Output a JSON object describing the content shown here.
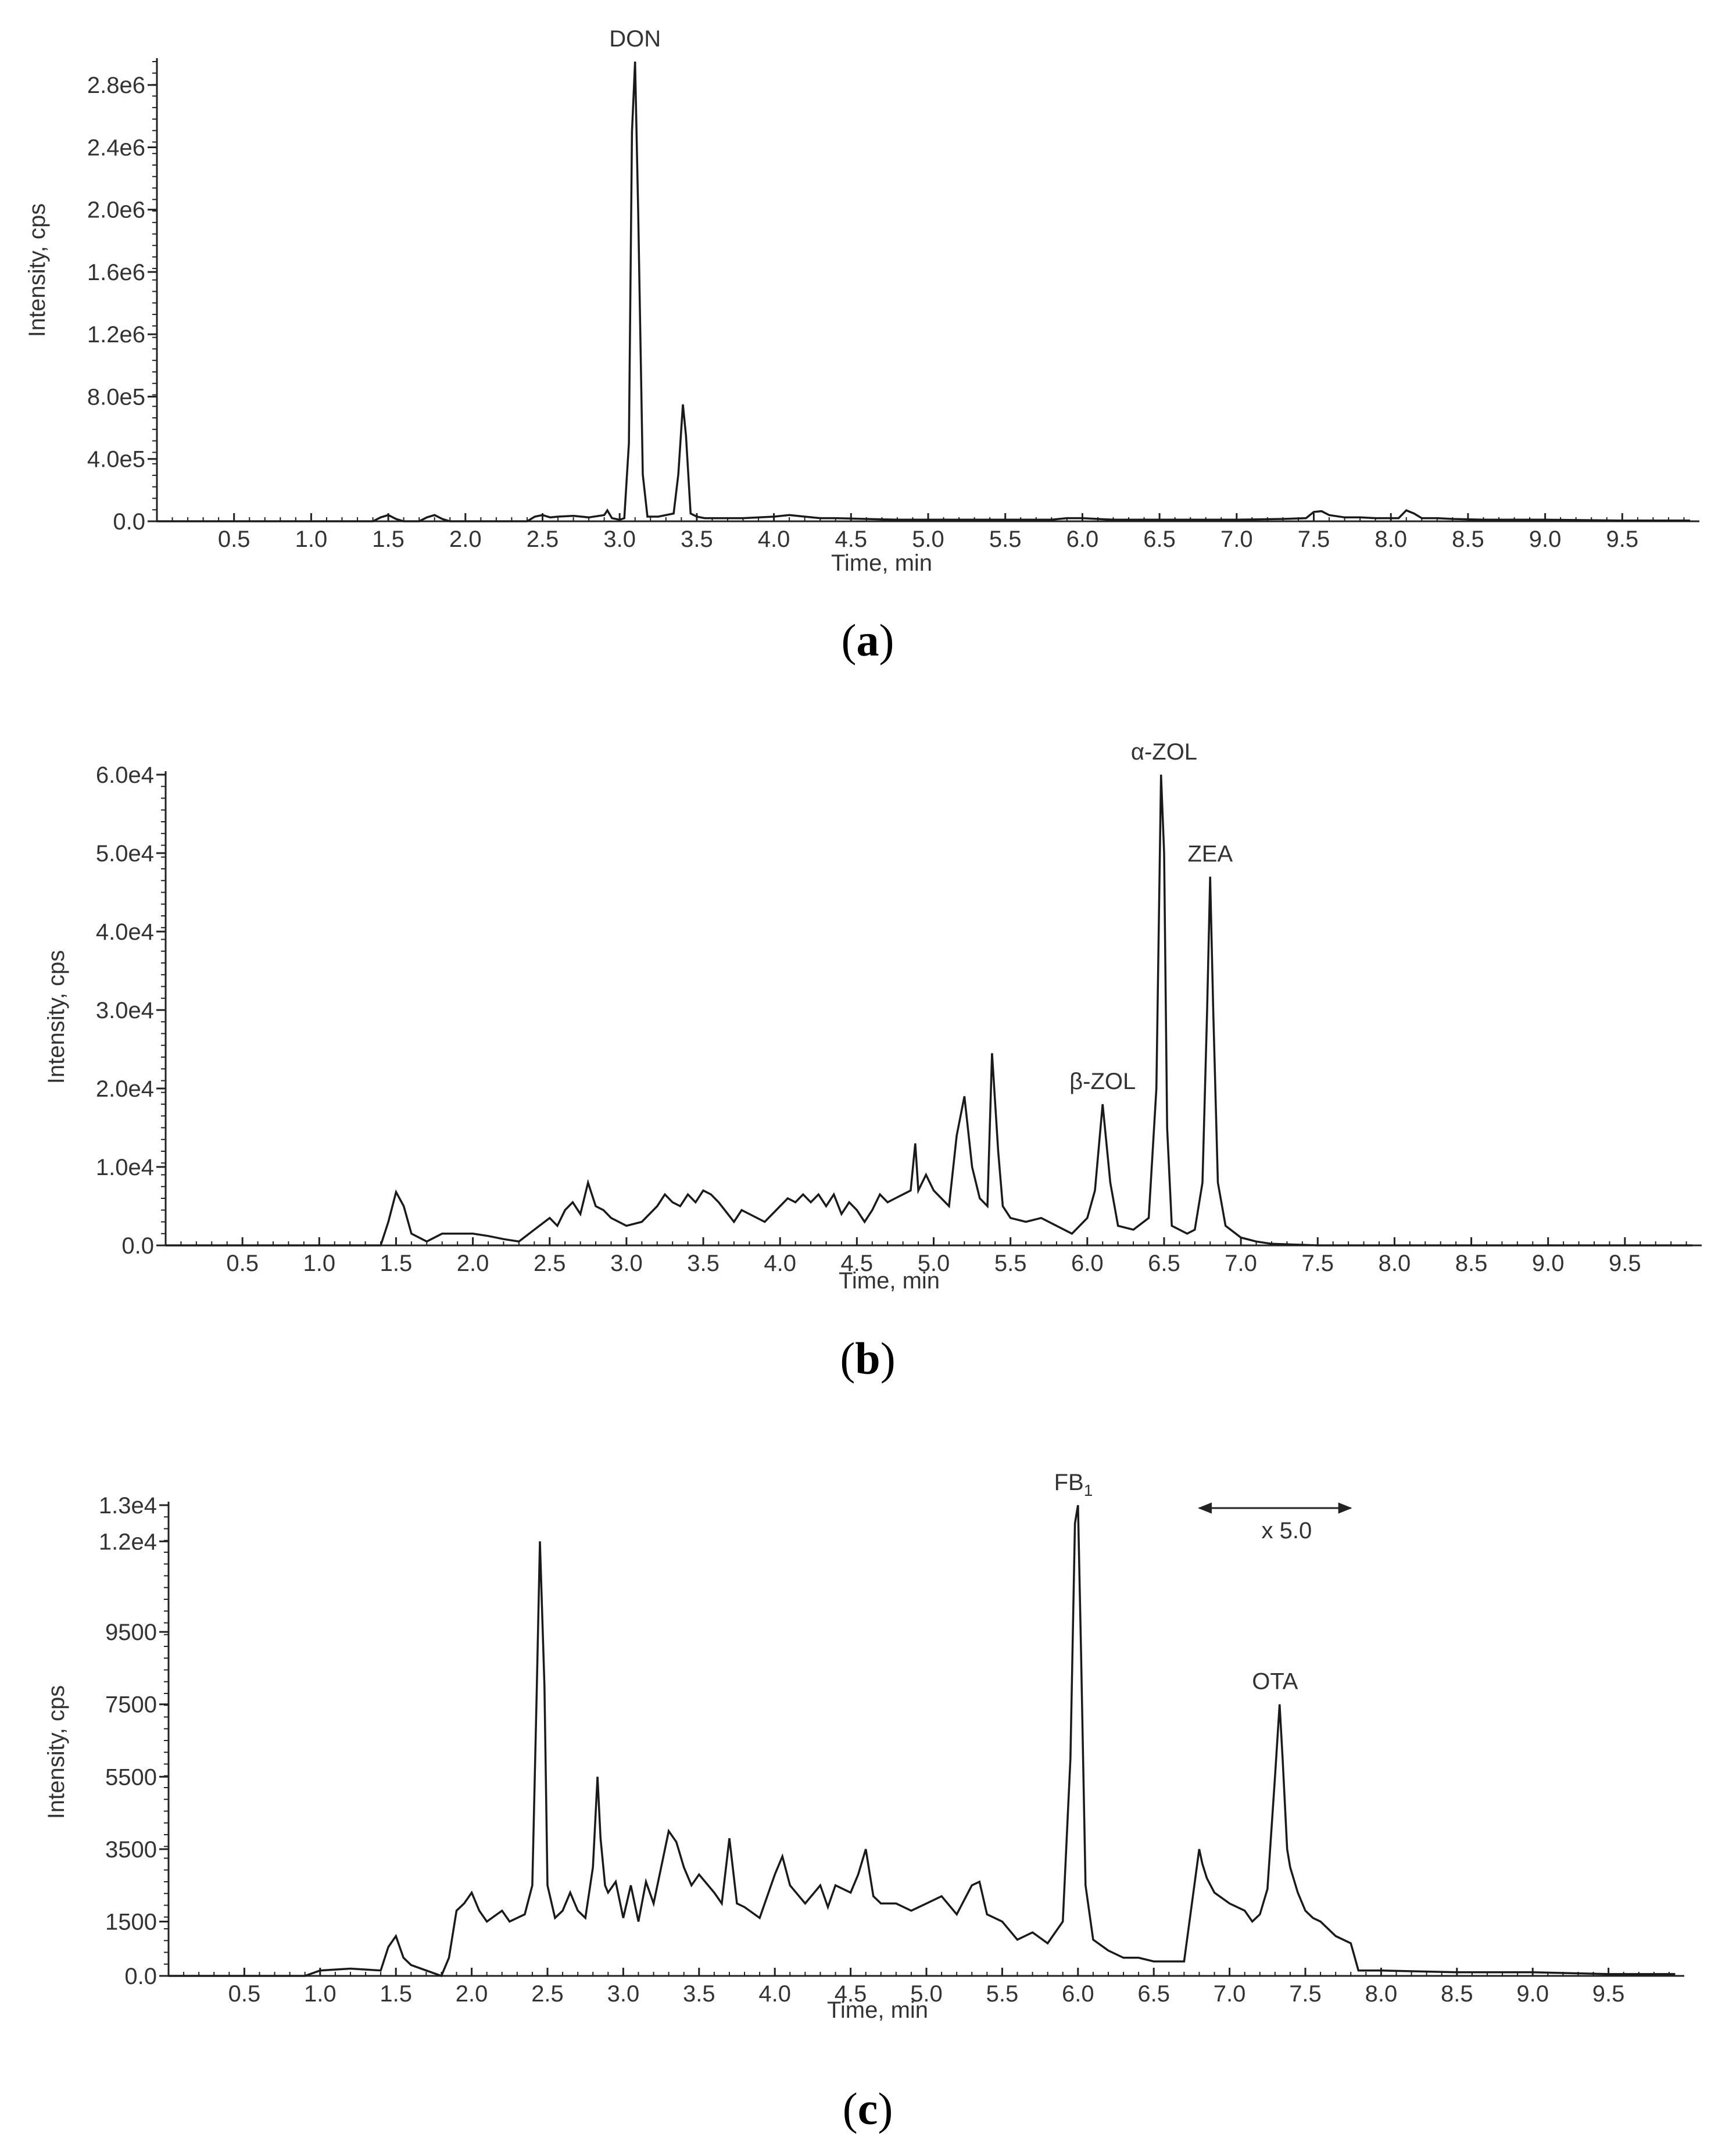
{
  "panels": [
    {
      "letter": "a"
    },
    {
      "letter": "b"
    },
    {
      "letter": "c"
    }
  ],
  "chart_data": [
    {
      "type": "line",
      "title": "",
      "panel_label": "a",
      "xlabel": "Time, min",
      "ylabel": "Intensity, cps",
      "xlim": [
        0,
        10
      ],
      "ylim": [
        0,
        2950000
      ],
      "x_ticks": [
        0.5,
        1.0,
        1.5,
        2.0,
        2.5,
        3.0,
        3.5,
        4.0,
        4.5,
        5.0,
        5.5,
        6.0,
        6.5,
        7.0,
        7.5,
        8.0,
        8.5,
        9.0,
        9.5
      ],
      "x_tick_labels": [
        "0.5",
        "1.0",
        "1.5",
        "2.0",
        "2.5",
        "3.0",
        "3.5",
        "4.0",
        "4.5",
        "5.0",
        "5.5",
        "6.0",
        "6.5",
        "7.0",
        "7.5",
        "8.0",
        "8.5",
        "9.0",
        "9.5"
      ],
      "y_ticks": [
        0,
        400000,
        800000,
        1200000,
        1600000,
        2000000,
        2400000,
        2800000
      ],
      "y_tick_labels": [
        "0.0",
        "4.0e5",
        "8.0e5",
        "1.2e6",
        "1.6e6",
        "2.0e6",
        "2.4e6",
        "2.8e6"
      ],
      "grid": false,
      "series": [
        {
          "x": [
            0.0,
            0.5,
            1.0,
            1.4,
            1.45,
            1.5,
            1.55,
            1.6,
            1.7,
            1.75,
            1.8,
            1.85,
            1.9,
            2.0,
            2.2,
            2.4,
            2.45,
            2.5,
            2.55,
            2.6,
            2.7,
            2.8,
            2.9,
            2.92,
            2.95,
            3.0,
            3.03,
            3.06,
            3.08,
            3.1,
            3.12,
            3.15,
            3.18,
            3.25,
            3.3,
            3.35,
            3.38,
            3.41,
            3.43,
            3.46,
            3.5,
            3.55,
            3.6,
            3.7,
            3.8,
            4.0,
            4.1,
            4.2,
            4.3,
            4.4,
            4.6,
            4.8,
            5.0,
            5.2,
            5.5,
            5.8,
            5.9,
            6.0,
            6.2,
            6.5,
            6.8,
            7.0,
            7.3,
            7.45,
            7.5,
            7.55,
            7.6,
            7.7,
            7.8,
            7.9,
            8.05,
            8.1,
            8.15,
            8.2,
            8.3,
            8.4,
            8.6,
            9.0,
            9.5,
            9.94
          ],
          "y": [
            0,
            0,
            0,
            0,
            25000,
            40000,
            15000,
            0,
            0,
            25000,
            40000,
            15000,
            0,
            0,
            0,
            0,
            30000,
            40000,
            25000,
            30000,
            35000,
            25000,
            40000,
            70000,
            20000,
            10000,
            20000,
            500000,
            2500000,
            2950000,
            2000000,
            300000,
            30000,
            30000,
            40000,
            50000,
            300000,
            750000,
            550000,
            50000,
            30000,
            20000,
            20000,
            20000,
            20000,
            30000,
            40000,
            30000,
            20000,
            20000,
            15000,
            10000,
            10000,
            10000,
            10000,
            10000,
            20000,
            20000,
            10000,
            10000,
            10000,
            10000,
            15000,
            20000,
            60000,
            65000,
            40000,
            25000,
            25000,
            20000,
            20000,
            70000,
            50000,
            20000,
            20000,
            15000,
            10000,
            10000,
            5000,
            5000
          ]
        }
      ],
      "annotations": [
        {
          "text": "DON",
          "x": 3.1,
          "y": 2950000
        }
      ]
    },
    {
      "type": "line",
      "title": "",
      "panel_label": "b",
      "xlabel": "Time, min",
      "ylabel": "Intensity, cps",
      "xlim": [
        0,
        10
      ],
      "ylim": [
        0,
        60000
      ],
      "x_ticks": [
        0.5,
        1.0,
        1.5,
        2.0,
        2.5,
        3.0,
        3.5,
        4.0,
        4.5,
        5.0,
        5.5,
        6.0,
        6.5,
        7.0,
        7.5,
        8.0,
        8.5,
        9.0,
        9.5
      ],
      "x_tick_labels": [
        "0.5",
        "1.0",
        "1.5",
        "2.0",
        "2.5",
        "3.0",
        "3.5",
        "4.0",
        "4.5",
        "5.0",
        "5.5",
        "6.0",
        "6.5",
        "7.0",
        "7.5",
        "8.0",
        "8.5",
        "9.0",
        "9.5"
      ],
      "y_ticks": [
        0,
        10000,
        20000,
        30000,
        40000,
        50000,
        60000
      ],
      "y_tick_labels": [
        "0.0",
        "1.0e4",
        "2.0e4",
        "3.0e4",
        "4.0e4",
        "5.0e4",
        "6.0e4"
      ],
      "grid": false,
      "series": [
        {
          "x": [
            0.0,
            0.5,
            1.0,
            1.4,
            1.45,
            1.5,
            1.55,
            1.6,
            1.7,
            1.8,
            1.9,
            2.0,
            2.1,
            2.2,
            2.3,
            2.4,
            2.5,
            2.55,
            2.6,
            2.65,
            2.7,
            2.75,
            2.8,
            2.85,
            2.9,
            3.0,
            3.1,
            3.2,
            3.25,
            3.3,
            3.35,
            3.4,
            3.45,
            3.5,
            3.55,
            3.6,
            3.7,
            3.75,
            3.8,
            3.9,
            4.0,
            4.05,
            4.1,
            4.15,
            4.2,
            4.25,
            4.3,
            4.35,
            4.4,
            4.45,
            4.5,
            4.55,
            4.6,
            4.65,
            4.7,
            4.75,
            4.8,
            4.85,
            4.88,
            4.9,
            4.95,
            5.0,
            5.05,
            5.1,
            5.15,
            5.2,
            5.25,
            5.3,
            5.35,
            5.38,
            5.42,
            5.45,
            5.5,
            5.6,
            5.7,
            5.8,
            5.9,
            6.0,
            6.05,
            6.1,
            6.15,
            6.2,
            6.3,
            6.4,
            6.45,
            6.48,
            6.5,
            6.52,
            6.55,
            6.6,
            6.65,
            6.7,
            6.75,
            6.78,
            6.8,
            6.82,
            6.85,
            6.9,
            7.0,
            7.1,
            7.2,
            7.5,
            8.0,
            8.5,
            9.0,
            9.5,
            9.94
          ],
          "y": [
            0,
            0,
            0,
            0,
            3000,
            6800,
            5000,
            1500,
            500,
            1500,
            1500,
            1500,
            1200,
            800,
            500,
            2000,
            3500,
            2500,
            4500,
            5500,
            4000,
            8000,
            5000,
            4500,
            3500,
            2500,
            3000,
            5000,
            6500,
            5500,
            5000,
            6500,
            5500,
            7000,
            6500,
            5500,
            3000,
            4500,
            4000,
            3000,
            5000,
            6000,
            5500,
            6500,
            5500,
            6500,
            5000,
            6500,
            4000,
            5500,
            4500,
            3000,
            4500,
            6500,
            5500,
            6000,
            6500,
            7000,
            13000,
            7000,
            9000,
            7000,
            6000,
            5000,
            14000,
            19000,
            10000,
            6000,
            5000,
            24500,
            12000,
            5000,
            3500,
            3000,
            3500,
            2500,
            1500,
            3500,
            7000,
            18000,
            8000,
            2500,
            2000,
            3500,
            20000,
            60000,
            50000,
            15000,
            2500,
            2000,
            1500,
            2000,
            8000,
            30000,
            47000,
            30000,
            8000,
            2500,
            1000,
            500,
            200,
            0,
            0,
            0,
            0,
            0,
            0
          ]
        }
      ],
      "annotations": [
        {
          "text": "β-ZOL",
          "x": 6.1,
          "y": 18000
        },
        {
          "text": "α-ZOL",
          "x": 6.5,
          "y": 60000
        },
        {
          "text": "ZEA",
          "x": 6.8,
          "y": 47000
        }
      ]
    },
    {
      "type": "line",
      "title": "",
      "panel_label": "c",
      "xlabel": "Time, min",
      "ylabel": "Intensity, cps",
      "xlim": [
        0,
        10
      ],
      "ylim": [
        0,
        13000
      ],
      "x_ticks": [
        0.5,
        1.0,
        1.5,
        2.0,
        2.5,
        3.0,
        3.5,
        4.0,
        4.5,
        5.0,
        5.5,
        6.0,
        6.5,
        7.0,
        7.5,
        8.0,
        8.5,
        9.0,
        9.5
      ],
      "x_tick_labels": [
        "0.5",
        "1.0",
        "1.5",
        "2.0",
        "2.5",
        "3.0",
        "3.5",
        "4.0",
        "4.5",
        "5.0",
        "5.5",
        "6.0",
        "6.5",
        "7.0",
        "7.5",
        "8.0",
        "8.5",
        "9.0",
        "9.5"
      ],
      "y_ticks": [
        0,
        1500,
        3500,
        5500,
        7500,
        9500,
        12000,
        13000
      ],
      "y_tick_labels": [
        "0.0",
        "1500",
        "3500",
        "5500",
        "7500",
        "9500",
        "1.2e4",
        "1.3e4"
      ],
      "grid": false,
      "series": [
        {
          "x": [
            0.0,
            0.5,
            0.9,
            1.0,
            1.2,
            1.4,
            1.45,
            1.5,
            1.55,
            1.6,
            1.8,
            1.85,
            1.9,
            1.95,
            2.0,
            2.05,
            2.1,
            2.2,
            2.25,
            2.3,
            2.35,
            2.4,
            2.43,
            2.45,
            2.48,
            2.5,
            2.55,
            2.6,
            2.65,
            2.7,
            2.75,
            2.8,
            2.83,
            2.85,
            2.88,
            2.9,
            2.95,
            3.0,
            3.05,
            3.1,
            3.15,
            3.2,
            3.25,
            3.3,
            3.35,
            3.4,
            3.45,
            3.5,
            3.6,
            3.65,
            3.7,
            3.75,
            3.8,
            3.9,
            4.0,
            4.05,
            4.1,
            4.2,
            4.3,
            4.35,
            4.4,
            4.5,
            4.55,
            4.6,
            4.65,
            4.7,
            4.8,
            4.9,
            5.0,
            5.1,
            5.2,
            5.3,
            5.35,
            5.4,
            5.5,
            5.6,
            5.7,
            5.8,
            5.9,
            5.95,
            5.98,
            6.0,
            6.02,
            6.05,
            6.1,
            6.2,
            6.3,
            6.4,
            6.5,
            6.6,
            6.7,
            6.8,
            6.82,
            6.85,
            6.9,
            7.0,
            7.1,
            7.15,
            7.2,
            7.25,
            7.3,
            7.33,
            7.35,
            7.38,
            7.4,
            7.45,
            7.5,
            7.55,
            7.6,
            7.7,
            7.8,
            7.82,
            7.85,
            8.0,
            8.5,
            9.0,
            9.5,
            9.94
          ],
          "y": [
            0,
            0,
            0,
            150,
            200,
            150,
            800,
            1100,
            500,
            300,
            0,
            500,
            1800,
            2000,
            2300,
            1800,
            1500,
            1800,
            1500,
            1600,
            1700,
            2500,
            8000,
            12000,
            8000,
            2500,
            1600,
            1800,
            2300,
            1800,
            1600,
            3000,
            5500,
            3800,
            2500,
            2300,
            2600,
            1600,
            2500,
            1500,
            2600,
            2000,
            3000,
            4000,
            3700,
            3000,
            2500,
            2800,
            2300,
            2000,
            3800,
            2000,
            1900,
            1600,
            2800,
            3300,
            2500,
            2000,
            2500,
            1900,
            2500,
            2300,
            2800,
            3500,
            2200,
            2000,
            2000,
            1800,
            2000,
            2200,
            1700,
            2500,
            2600,
            1700,
            1500,
            1000,
            1200,
            900,
            1500,
            6000,
            12500,
            13000,
            9000,
            2500,
            1000,
            700,
            500,
            500,
            400,
            400,
            400,
            3500,
            3100,
            2700,
            2300,
            2000,
            1800,
            1500,
            1700,
            2400,
            5500,
            7500,
            6000,
            3500,
            3000,
            2300,
            1800,
            1600,
            1500,
            1100,
            900,
            600,
            150,
            150,
            100,
            100,
            50,
            50
          ]
        }
      ],
      "annotations": [
        {
          "text": "FB",
          "subscript": "1",
          "x": 5.97,
          "y": 13000
        },
        {
          "text": "OTA",
          "x": 7.3,
          "y": 7500
        },
        {
          "text": "x 5.0",
          "x_start": 6.8,
          "x_end": 7.8
        }
      ]
    }
  ]
}
